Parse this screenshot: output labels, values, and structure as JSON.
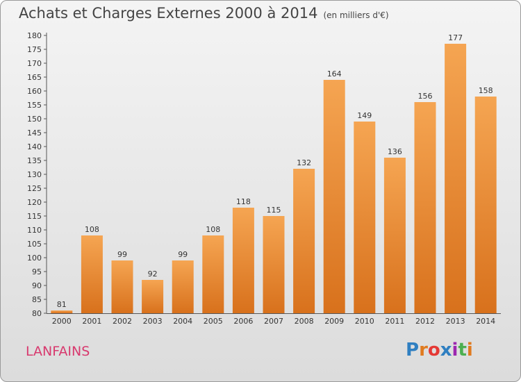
{
  "title": "Achats et Charges Externes 2000 à 2014",
  "unit_note": "(en milliers d'€)",
  "commune": "LANFAINS",
  "logo": {
    "text": "Proxiti",
    "colors": [
      "#2f7fc1",
      "#e07a1f",
      "#e53935",
      "#2f7fc1",
      "#9c27b0",
      "#4caf50",
      "#e07a1f"
    ]
  },
  "colors": {
    "bar_top": "#f5a552",
    "bar_bottom": "#d8711c",
    "title": "#444444",
    "commune": "#d8396e"
  },
  "chart_data": {
    "type": "bar",
    "title": "Achats et Charges Externes 2000 à 2014",
    "subtitle": "(en milliers d'€)",
    "xlabel": "",
    "ylabel": "",
    "categories": [
      "2000",
      "2001",
      "2002",
      "2003",
      "2004",
      "2005",
      "2006",
      "2007",
      "2008",
      "2009",
      "2010",
      "2011",
      "2012",
      "2013",
      "2014"
    ],
    "values": [
      81,
      108,
      99,
      92,
      99,
      108,
      118,
      115,
      132,
      164,
      149,
      136,
      156,
      177,
      158
    ],
    "ylim": [
      80,
      180
    ],
    "yticks": [
      80,
      85,
      90,
      95,
      100,
      105,
      110,
      115,
      120,
      125,
      130,
      135,
      140,
      145,
      150,
      155,
      160,
      165,
      170,
      175,
      180
    ],
    "grid": false,
    "legend": "none"
  }
}
